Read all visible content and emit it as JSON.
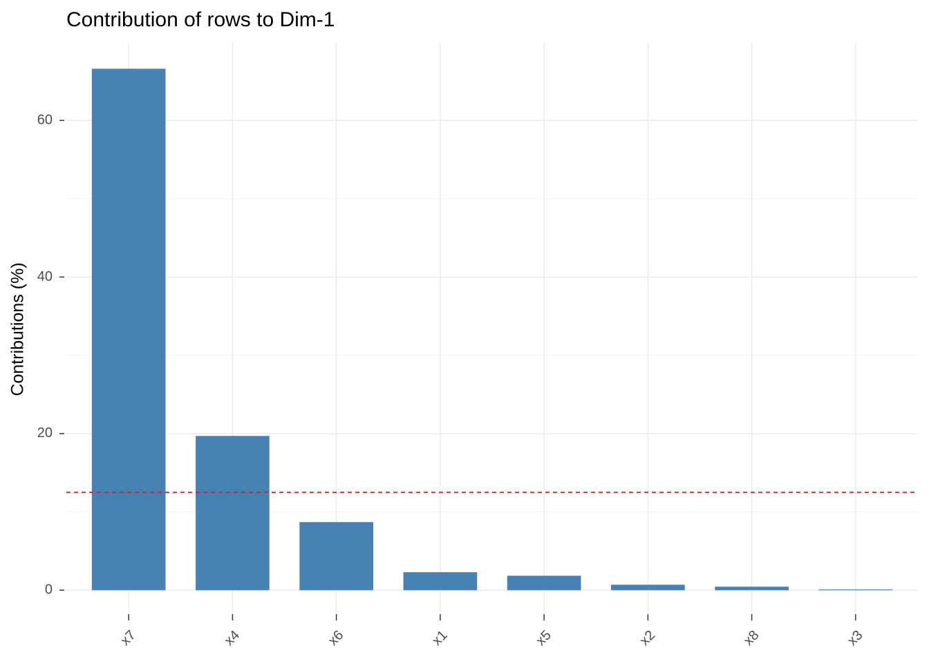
{
  "chart_data": {
    "type": "bar",
    "title": "Contribution of rows to Dim-1",
    "y_label": "Contributions (%)",
    "categories": [
      "x7",
      "x4",
      "x6",
      "x1",
      "x5",
      "x2",
      "x8",
      "x3"
    ],
    "values": [
      66.6,
      19.7,
      8.7,
      2.3,
      1.85,
      0.7,
      0.45,
      0.1
    ],
    "color": "#4682b4",
    "reference_line": 12.5,
    "reference_color": "#e41a1c",
    "ylim": [
      -3.33,
      69.9
    ],
    "yticks": [
      0,
      20,
      40,
      60
    ],
    "minor_yticks": [
      10,
      30,
      50
    ],
    "grid": true
  }
}
